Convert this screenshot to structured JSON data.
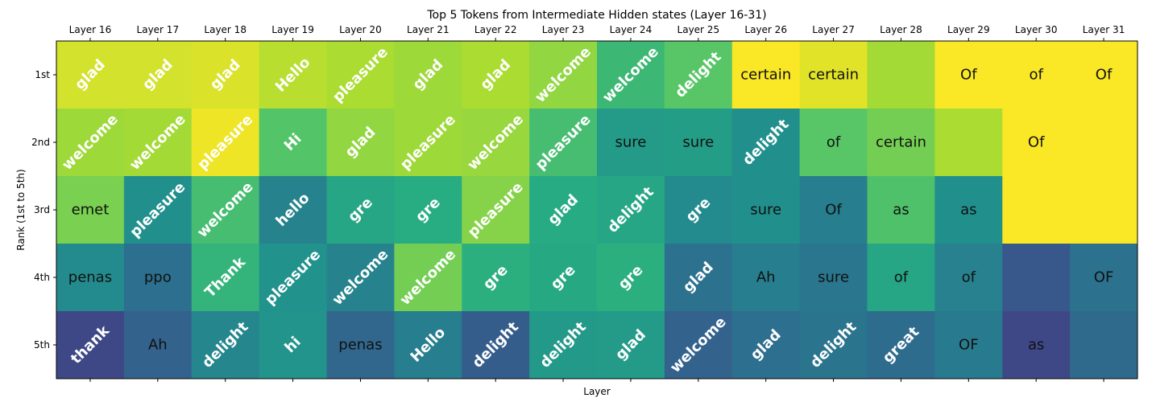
{
  "chart_data": {
    "type": "heatmap",
    "title": "Top 5 Tokens from Intermediate Hidden states (Layer 16-31)",
    "xlabel": "Layer",
    "ylabel": "Rank (1st to 5th)",
    "x_tick_position": "top",
    "x": [
      "Layer 16",
      "Layer 17",
      "Layer 18",
      "Layer 19",
      "Layer 20",
      "Layer 21",
      "Layer 22",
      "Layer 23",
      "Layer 24",
      "Layer 25",
      "Layer 26",
      "Layer 27",
      "Layer 28",
      "Layer 29",
      "Layer 30",
      "Layer 31"
    ],
    "y": [
      "1st",
      "2nd",
      "3rd",
      "4th",
      "5th"
    ],
    "colormap": "viridis",
    "value_range": [
      0,
      1
    ],
    "values": [
      [
        0.94,
        0.94,
        0.95,
        0.9,
        0.88,
        0.86,
        0.88,
        0.84,
        0.68,
        0.74,
        0.995,
        0.96,
        0.87,
        0.995,
        0.995,
        0.995
      ],
      [
        0.86,
        0.87,
        0.98,
        0.73,
        0.84,
        0.86,
        0.85,
        0.7,
        0.55,
        0.56,
        0.5,
        0.74,
        0.79,
        0.88,
        0.995,
        0.995
      ],
      [
        0.8,
        0.5,
        0.7,
        0.45,
        0.6,
        0.63,
        0.82,
        0.62,
        0.6,
        0.48,
        0.5,
        0.43,
        0.72,
        0.5,
        0.995,
        0.995
      ],
      [
        0.48,
        0.37,
        0.66,
        0.51,
        0.45,
        0.79,
        0.64,
        0.61,
        0.64,
        0.38,
        0.43,
        0.4,
        0.6,
        0.44,
        0.28,
        0.38
      ],
      [
        0.22,
        0.32,
        0.46,
        0.52,
        0.34,
        0.43,
        0.3,
        0.54,
        0.55,
        0.32,
        0.37,
        0.39,
        0.36,
        0.42,
        0.22,
        0.35
      ]
    ],
    "tokens": [
      [
        "glad",
        "glad",
        "glad",
        "Hello",
        "pleasure",
        "glad",
        "glad",
        "welcome",
        "welcome",
        "delight",
        "certain",
        "certain",
        "",
        "Of",
        "of",
        "Of"
      ],
      [
        "welcome",
        "welcome",
        "pleasure",
        "Hi",
        "glad",
        "pleasure",
        "welcome",
        "pleasure",
        "sure",
        "sure",
        "delight",
        "of",
        "certain",
        "",
        "Of",
        ""
      ],
      [
        "emet",
        "pleasure",
        "welcome",
        "hello",
        "gre",
        "gre",
        "pleasure",
        "glad",
        "delight",
        "gre",
        "sure",
        "Of",
        "as",
        "as",
        "",
        ""
      ],
      [
        "penas",
        "ppo",
        "Thank",
        "pleasure",
        "welcome",
        "welcome",
        "gre",
        "gre",
        "gre",
        "glad",
        "Ah",
        "sure",
        "of",
        "of",
        "",
        "OF"
      ],
      [
        "thank",
        "Ah",
        "delight",
        "hi",
        "penas",
        "Hello",
        "delight",
        "delight",
        "glad",
        "welcome",
        "glad",
        "delight",
        "great",
        "OF",
        "as",
        ""
      ]
    ],
    "rotated": [
      [
        1,
        1,
        1,
        1,
        1,
        1,
        1,
        1,
        1,
        1,
        0,
        0,
        0,
        0,
        0,
        0
      ],
      [
        1,
        1,
        1,
        1,
        1,
        1,
        1,
        1,
        0,
        0,
        1,
        0,
        0,
        0,
        0,
        0
      ],
      [
        0,
        1,
        1,
        1,
        1,
        1,
        1,
        1,
        1,
        1,
        0,
        0,
        0,
        0,
        0,
        0
      ],
      [
        0,
        0,
        1,
        1,
        1,
        1,
        1,
        1,
        1,
        1,
        0,
        0,
        0,
        0,
        0,
        0
      ],
      [
        1,
        0,
        1,
        1,
        0,
        1,
        1,
        1,
        1,
        1,
        1,
        1,
        1,
        0,
        0,
        0
      ]
    ]
  }
}
